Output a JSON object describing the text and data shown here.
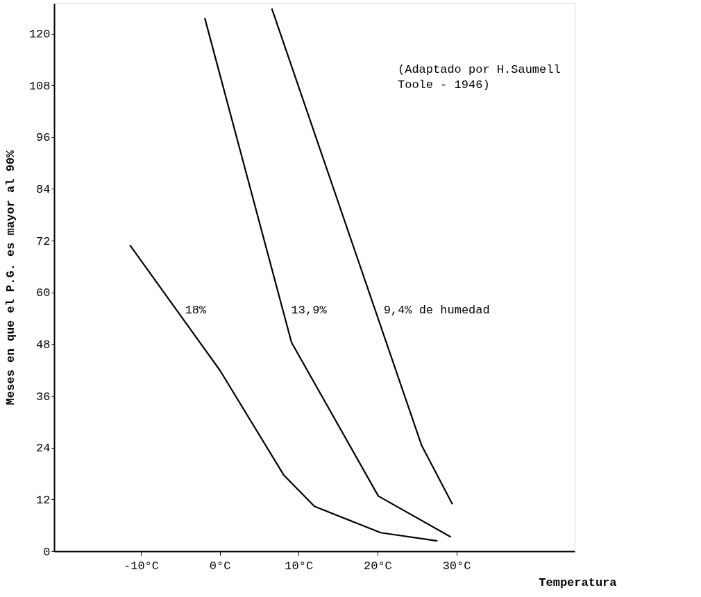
{
  "chart_data": {
    "type": "line",
    "xlabel": "Temperatura",
    "ylabel": "Meses en que el P.G. es mayor al 90%",
    "xlim": [
      -21,
      45
    ],
    "ylim": [
      0,
      127
    ],
    "xticks": [
      {
        "value": -10,
        "label": "-10°C"
      },
      {
        "value": 0,
        "label": "0°C"
      },
      {
        "value": 10,
        "label": "10°C"
      },
      {
        "value": 20,
        "label": "20°C"
      },
      {
        "value": 30,
        "label": "30°C"
      }
    ],
    "yticks": [
      0,
      12,
      24,
      36,
      48,
      60,
      72,
      84,
      96,
      108,
      120
    ],
    "grid": false,
    "marker": "none",
    "line_style": "solid",
    "series": [
      {
        "name": "18%",
        "color": "#000000",
        "x": [
          -11.4,
          0,
          8.1,
          12,
          20.4,
          27.6
        ],
        "values": [
          71,
          42,
          17.7,
          10.4,
          4.3,
          2.4
        ]
      },
      {
        "name": "13,9%",
        "color": "#000000",
        "x": [
          -1.9,
          9.1,
          20.1,
          29.3
        ],
        "values": [
          123.6,
          48.4,
          12.8,
          3.3
        ]
      },
      {
        "name": "9,4% de humedad",
        "color": "#000000",
        "x": [
          6.6,
          25.6,
          29.5
        ],
        "values": [
          125.8,
          24.5,
          10.9
        ]
      }
    ],
    "annotations": [
      "(Adaptado por  H.Saumell",
      "Toole - 1946)"
    ]
  }
}
